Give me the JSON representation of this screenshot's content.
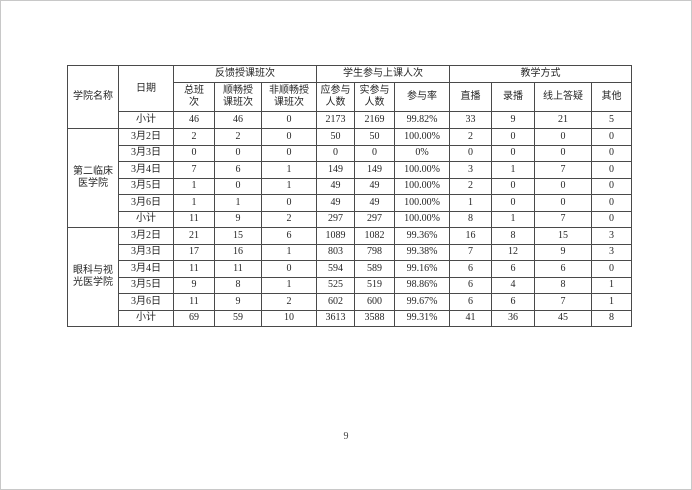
{
  "page": {
    "number": "9"
  },
  "table": {
    "header": {
      "college": "学院名称",
      "date": "日期",
      "group_feedback": "反馈授课班次",
      "group_participation": "学生参与上课人次",
      "group_method": "教学方式",
      "sub": [
        "总班\n次",
        "顺畅授\n课班次",
        "非顺畅授\n课班次",
        "应参与\n人数",
        "实参与\n人数",
        "参与率",
        "直播",
        "录播",
        "线上答疑",
        "其他"
      ]
    },
    "total_row": {
      "label": "小计",
      "values": [
        "46",
        "46",
        "0",
        "2173",
        "2169",
        "99.82%",
        "33",
        "9",
        "21",
        "5"
      ]
    },
    "groups": [
      {
        "college": "第二临床\n医学院",
        "rows": [
          {
            "date": "3月2日",
            "values": [
              "2",
              "2",
              "0",
              "50",
              "50",
              "100.00%",
              "2",
              "0",
              "0",
              "0"
            ]
          },
          {
            "date": "3月3日",
            "values": [
              "0",
              "0",
              "0",
              "0",
              "0",
              "0%",
              "0",
              "0",
              "0",
              "0"
            ]
          },
          {
            "date": "3月4日",
            "values": [
              "7",
              "6",
              "1",
              "149",
              "149",
              "100.00%",
              "3",
              "1",
              "7",
              "0"
            ]
          },
          {
            "date": "3月5日",
            "values": [
              "1",
              "0",
              "1",
              "49",
              "49",
              "100.00%",
              "2",
              "0",
              "0",
              "0"
            ]
          },
          {
            "date": "3月6日",
            "values": [
              "1",
              "1",
              "0",
              "49",
              "49",
              "100.00%",
              "1",
              "0",
              "0",
              "0"
            ]
          }
        ],
        "subtotal": {
          "label": "小计",
          "values": [
            "11",
            "9",
            "2",
            "297",
            "297",
            "100.00%",
            "8",
            "1",
            "7",
            "0"
          ]
        }
      },
      {
        "college": "眼科与视\n光医学院",
        "rows": [
          {
            "date": "3月2日",
            "values": [
              "21",
              "15",
              "6",
              "1089",
              "1082",
              "99.36%",
              "16",
              "8",
              "15",
              "3"
            ]
          },
          {
            "date": "3月3日",
            "values": [
              "17",
              "16",
              "1",
              "803",
              "798",
              "99.38%",
              "7",
              "12",
              "9",
              "3"
            ]
          },
          {
            "date": "3月4日",
            "values": [
              "11",
              "11",
              "0",
              "594",
              "589",
              "99.16%",
              "6",
              "6",
              "6",
              "0"
            ]
          },
          {
            "date": "3月5日",
            "values": [
              "9",
              "8",
              "1",
              "525",
              "519",
              "98.86%",
              "6",
              "4",
              "8",
              "1"
            ]
          },
          {
            "date": "3月6日",
            "values": [
              "11",
              "9",
              "2",
              "602",
              "600",
              "99.67%",
              "6",
              "6",
              "7",
              "1"
            ]
          }
        ],
        "subtotal": {
          "label": "小计",
          "values": [
            "69",
            "59",
            "10",
            "3613",
            "3588",
            "99.31%",
            "41",
            "36",
            "45",
            "8"
          ]
        }
      }
    ]
  }
}
